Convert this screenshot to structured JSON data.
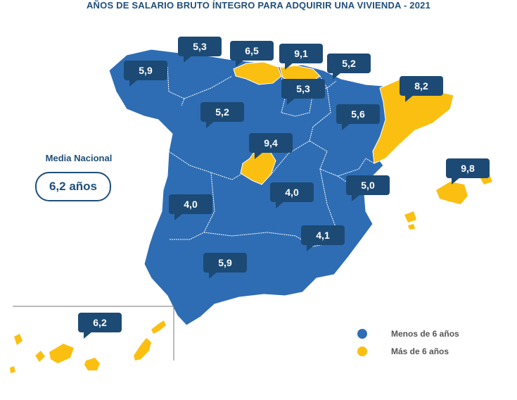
{
  "title": "AÑOS DE SALARIO BRUTO ÍNTEGRO PARA ADQUIRIR UNA VIVIENDA - 2021",
  "media": {
    "label": "Media Nacional",
    "value": "6,2 años"
  },
  "colors": {
    "below": "#2e6db4",
    "above": "#fbbf12",
    "bubble": "#1c4a74",
    "text": "#1f4e79"
  },
  "legend": [
    {
      "label": "Menos de 6 años",
      "color": "#2e6db4"
    },
    {
      "label": "Más de 6 años",
      "color": "#fbbf12"
    }
  ],
  "regions": [
    {
      "name": "Galicia",
      "value": "5,9",
      "category": "below"
    },
    {
      "name": "Asturias",
      "value": "5,3",
      "category": "below"
    },
    {
      "name": "Cantabria",
      "value": "6,5",
      "category": "above"
    },
    {
      "name": "País Vasco",
      "value": "9,1",
      "category": "above"
    },
    {
      "name": "Navarra",
      "value": "5,2",
      "category": "below"
    },
    {
      "name": "La Rioja",
      "value": "5,3",
      "category": "below"
    },
    {
      "name": "Cataluña",
      "value": "8,2",
      "category": "above"
    },
    {
      "name": "Castilla y León",
      "value": "5,2",
      "category": "below"
    },
    {
      "name": "Aragón",
      "value": "5,6",
      "category": "below"
    },
    {
      "name": "Madrid",
      "value": "9,4",
      "category": "above"
    },
    {
      "name": "Baleares",
      "value": "9,8",
      "category": "above"
    },
    {
      "name": "Castilla-La Mancha",
      "value": "4,0",
      "category": "below"
    },
    {
      "name": "Extremadura",
      "value": "4,0",
      "category": "below"
    },
    {
      "name": "Comunidad Valenciana",
      "value": "5,0",
      "category": "below"
    },
    {
      "name": "Murcia",
      "value": "4,1",
      "category": "below"
    },
    {
      "name": "Andalucía",
      "value": "5,9",
      "category": "below"
    },
    {
      "name": "Canarias",
      "value": "6,2",
      "category": "above"
    }
  ]
}
